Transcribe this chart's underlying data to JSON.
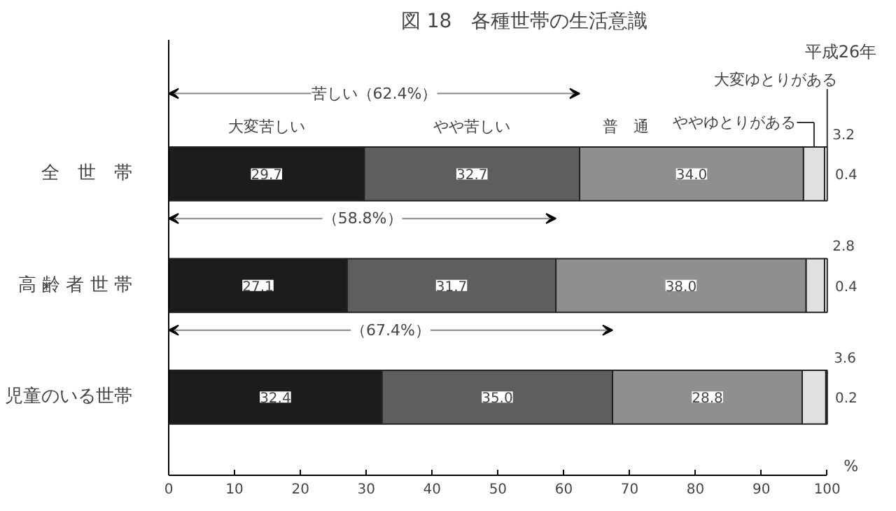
{
  "chart_data": {
    "type": "bar",
    "orientation": "horizontal",
    "stacked": true,
    "title": "図 18　各種世帯の生活意識",
    "xlabel": "%",
    "categories": [
      "全　世　帯",
      "高 齢 者 世 帯",
      "児童のいる世帯"
    ],
    "series": [
      {
        "name": "大変苦しい",
        "color": "#1c1c1c",
        "values": [
          29.7,
          27.1,
          32.4
        ],
        "value_labels": [
          "29.7",
          "27.1",
          "32.4"
        ]
      },
      {
        "name": "やや苦しい",
        "color": "#5e5e5e",
        "values": [
          32.7,
          31.7,
          35.0
        ],
        "value_labels": [
          "32.7",
          "31.7",
          "35.0"
        ]
      },
      {
        "name": "普　通",
        "color": "#8f8f8f",
        "values": [
          34.0,
          38.0,
          28.8
        ],
        "value_labels": [
          "34.0",
          "38.0",
          "28.8"
        ]
      },
      {
        "name": "ややゆとりがある",
        "color": "#e0e0e0",
        "values": [
          3.2,
          2.8,
          3.6
        ],
        "value_labels": [
          "3.2",
          "2.8",
          "3.6"
        ]
      },
      {
        "name": "大変ゆとりがある",
        "color": "#ffffff",
        "values": [
          0.4,
          0.4,
          0.2
        ],
        "value_labels": [
          "0.4",
          "0.4",
          "0.2"
        ]
      }
    ],
    "xlim": [
      0,
      100
    ],
    "xticks": [
      0,
      10,
      20,
      30,
      40,
      50,
      60,
      70,
      80,
      90,
      100
    ],
    "grid": false,
    "legend": false,
    "annotations": [
      "苦しい（62.4%）",
      "（58.8%）",
      "（67.4%）",
      "平成26年"
    ]
  }
}
